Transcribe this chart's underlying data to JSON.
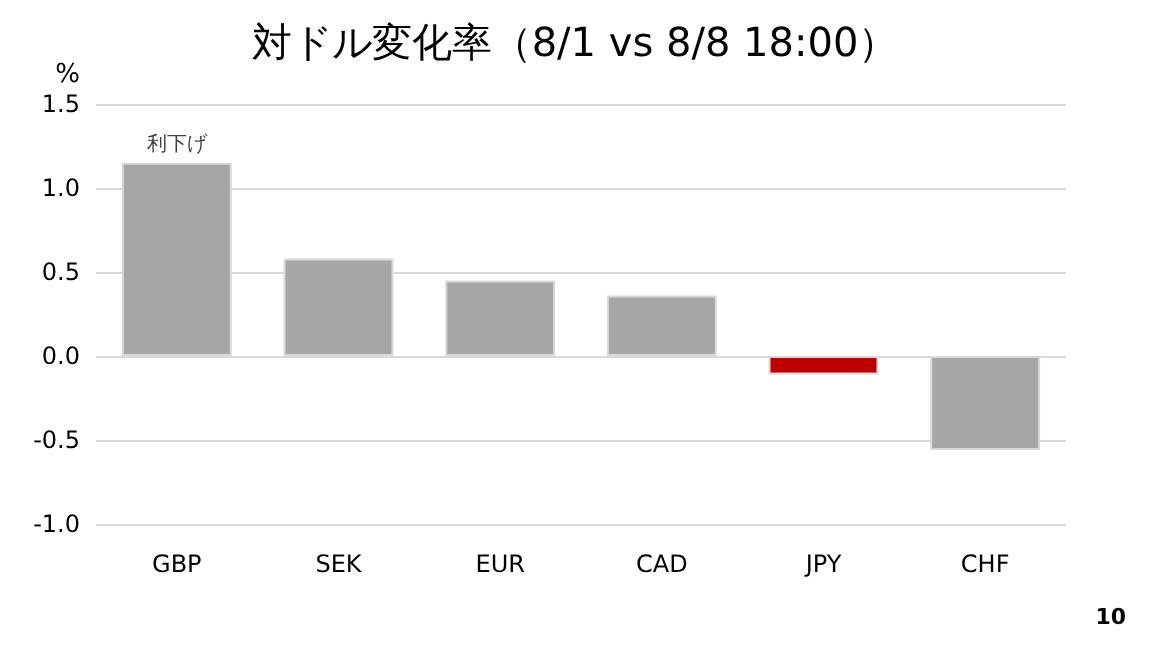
{
  "chart_data": {
    "type": "bar",
    "title": "対ドル変化率（8/1 vs 8/8 18:00）",
    "ylabel": "%",
    "categories": [
      "GBP",
      "SEK",
      "EUR",
      "CAD",
      "JPY",
      "CHF"
    ],
    "values": [
      1.15,
      0.58,
      0.45,
      0.36,
      -0.11,
      -0.56
    ],
    "colors": [
      "#a6a6a6",
      "#a6a6a6",
      "#a6a6a6",
      "#a6a6a6",
      "#c00000",
      "#a6a6a6"
    ],
    "ylim": [
      -1.0,
      1.5
    ],
    "yticks": [
      {
        "value": -1,
        "label": "-1.0"
      },
      -0.5,
      {
        "value": 0,
        "label": "0.0"
      },
      0.5,
      {
        "value": 1,
        "label": "1.0"
      },
      1.5
    ],
    "grid": "y",
    "annotations": [
      {
        "text": "利下げ",
        "x": "GBP",
        "y": 1.15
      },
      "10"
    ]
  }
}
